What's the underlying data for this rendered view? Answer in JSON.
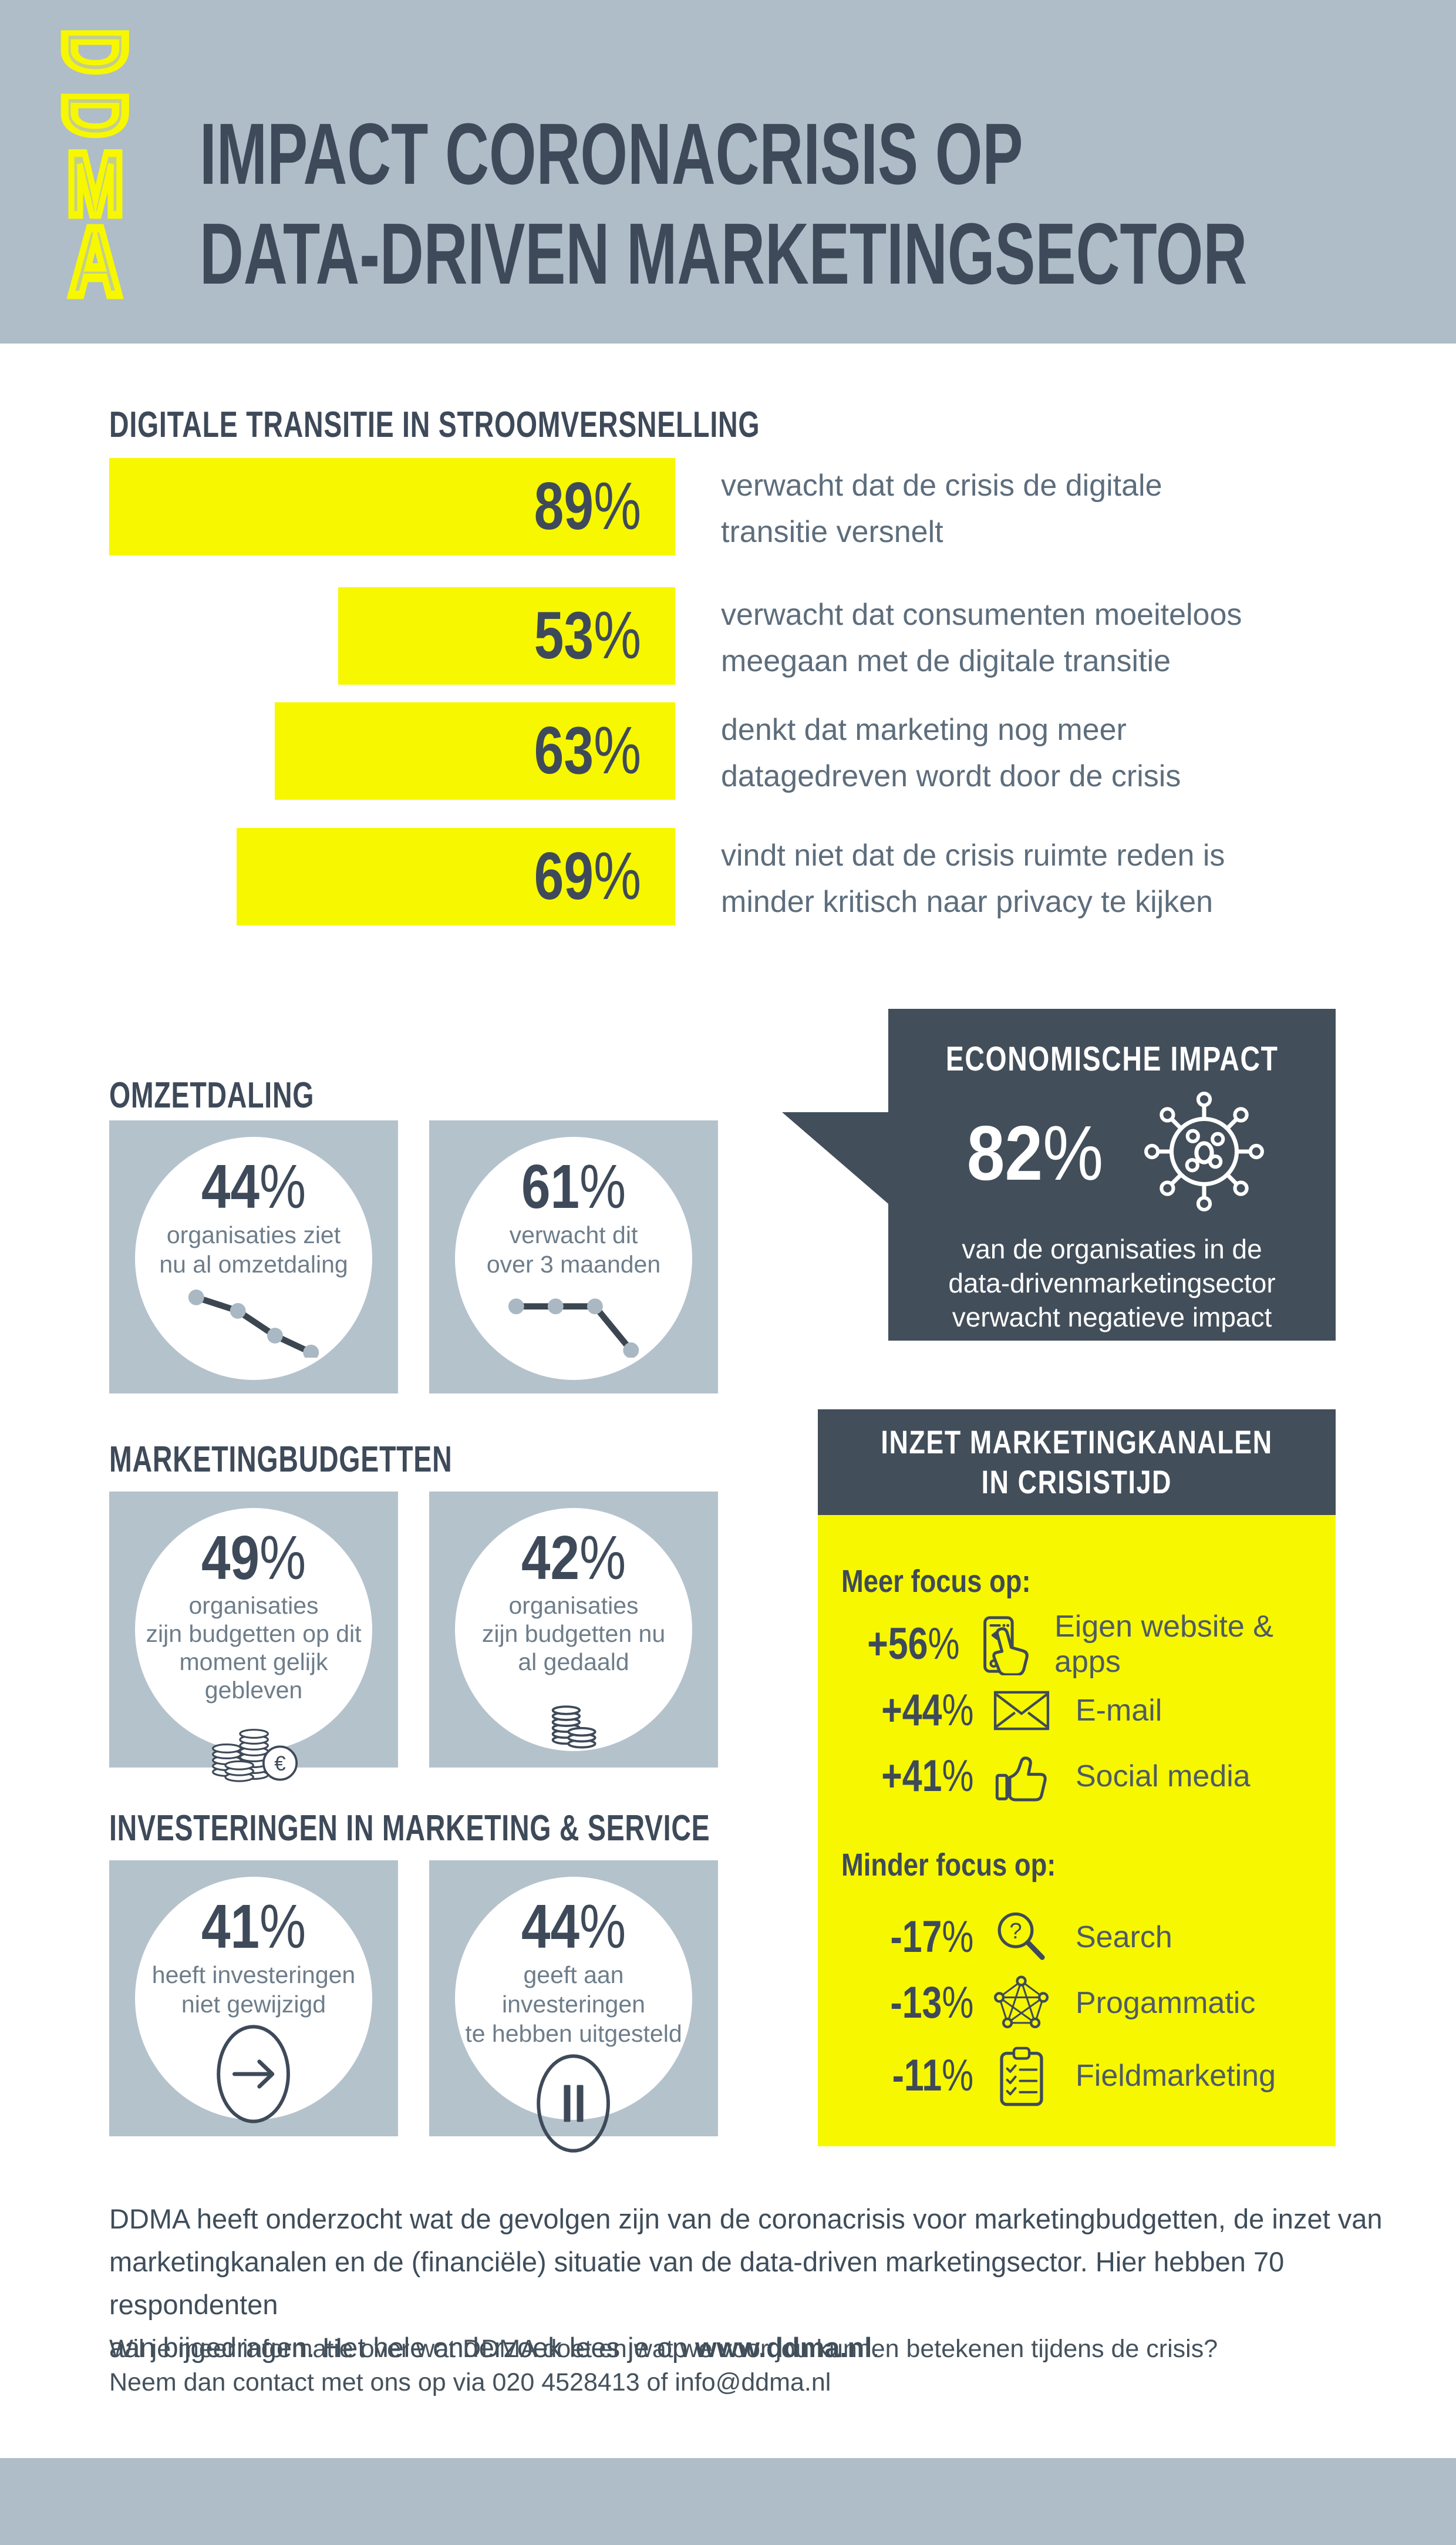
{
  "colors": {
    "accent_yellow": "#F7F700",
    "band_gray_blue": "#AEBDC8",
    "card_gray_blue": "#B4C2CC",
    "navy_text": "#3E4A59",
    "dark_panel": "#424E5A",
    "body_text": "#5D6D7C",
    "white": "#FFFFFF"
  },
  "percent_sign": "%",
  "header": {
    "logo_letters": [
      "D",
      "D",
      "M",
      "A"
    ],
    "title_lines": [
      "IMPACT CORONACRISIS OP",
      "DATA-DRIVEN MARKETINGSECTOR"
    ]
  },
  "sections": {
    "digitale": {
      "heading": "DIGITALE TRANSITIE IN STROOMVERSNELLING",
      "bars": [
        {
          "number": "89",
          "value": 89,
          "lines": [
            "verwacht dat de crisis de digitale",
            "transitie versnelt"
          ]
        },
        {
          "number": "53",
          "value": 53,
          "lines": [
            "verwacht dat consumenten moeiteloos",
            "meegaan met de digitale transitie"
          ]
        },
        {
          "number": "63",
          "value": 63,
          "lines": [
            "denkt dat marketing nog meer",
            "datagedreven wordt door de crisis"
          ]
        },
        {
          "number": "69",
          "value": 69,
          "lines": [
            "vindt niet dat de crisis ruimte reden is",
            "minder kritisch naar privacy te kijken"
          ]
        }
      ]
    },
    "omzetdaling": {
      "heading": "OMZETDALING",
      "cards": [
        {
          "number": "44",
          "caption_lines": [
            "organisaties ziet",
            "nu al omzetdaling"
          ],
          "icon": "declining-line-chart-icon"
        },
        {
          "number": "61",
          "caption_lines": [
            "verwacht dit",
            "over 3 maanden"
          ],
          "icon": "flat-then-drop-line-chart-icon"
        }
      ]
    },
    "impact": {
      "title": "ECONOMISCHE IMPACT",
      "number": "82",
      "caption_lines": [
        "van de organisaties in de",
        "data-drivenmarketingsector",
        "verwacht negatieve impact"
      ],
      "icon": "virus-icon"
    },
    "budgetten": {
      "heading": "MARKETINGBUDGETTEN",
      "cards": [
        {
          "number": "49",
          "caption_lines": [
            "organisaties",
            "zijn budgetten op dit",
            "moment gelijk gebleven"
          ],
          "icon": "coin-stacks-euro-icon"
        },
        {
          "number": "42",
          "caption_lines": [
            "organisaties",
            "zijn budgetten nu",
            "al gedaald"
          ],
          "icon": "coin-stacks-icon"
        }
      ]
    },
    "kanalen": {
      "title_lines": [
        "INZET MARKETINGKANALEN",
        "IN CRISISTIJD"
      ],
      "meer_heading": "Meer focus op:",
      "meer": [
        {
          "number": "+56",
          "label": "Eigen website & apps",
          "icon": "smartphone-swipe-icon"
        },
        {
          "number": "+44",
          "label": "E-mail",
          "icon": "envelope-icon"
        },
        {
          "number": "+41",
          "label": "Social media",
          "icon": "thumbs-up-icon"
        }
      ],
      "minder_heading": "Minder focus op:",
      "minder": [
        {
          "number": "-17",
          "label": "Search",
          "icon": "search-question-icon"
        },
        {
          "number": "-13",
          "label": "Progammatic",
          "icon": "network-nodes-icon"
        },
        {
          "number": "-11",
          "label": "Fieldmarketing",
          "icon": "clipboard-checklist-icon"
        }
      ]
    },
    "investeringen": {
      "heading": "INVESTERINGEN IN MARKETING & SERVICE",
      "cards": [
        {
          "number": "41",
          "caption_lines": [
            "heeft investeringen",
            "niet gewijzigd"
          ],
          "icon": "arrow-right-circle-icon"
        },
        {
          "number": "44",
          "caption_lines": [
            "geeft aan investeringen",
            "te hebben uitgesteld"
          ],
          "icon": "pause-circle-icon"
        }
      ]
    }
  },
  "footer": {
    "para1_lines": [
      "DDMA heeft onderzocht wat de gevolgen zijn van de coronacrisis voor marketingbudgetten, de inzet van",
      "marketingkanalen en de (financiële) situatie van de data-driven marketingsector. Hier hebben 70 respondenten"
    ],
    "para1_line3_prefix": "aan bijgedragen. Het hele onderzoek lees je op ",
    "para1_link": "www.ddma.nl",
    "para1_line3_suffix": ".",
    "para2_lines": [
      "Wil je meer informatie over wat DDMA doet en wat we voor jou kunnen betekenen tijdens de crisis?",
      "Neem dan contact met ons op via 020 4528413 of info@ddma.nl"
    ]
  },
  "chart_data": [
    {
      "type": "bar",
      "title": "DIGITALE TRANSITIE IN STROOMVERSNELLING",
      "unit": "%",
      "categories": [
        "verwacht dat de crisis de digitale transitie versnelt",
        "verwacht dat consumenten moeiteloos meegaan met de digitale transitie",
        "denkt dat marketing nog meer datagedreven wordt door de crisis",
        "vindt niet dat de crisis ruimte reden is minder kritisch naar privacy te kijken"
      ],
      "values": [
        89,
        53,
        63,
        69
      ],
      "orientation": "horizontal-right-aligned"
    },
    {
      "type": "table",
      "title": "OMZETDALING",
      "unit": "%",
      "rows": [
        [
          "organisaties ziet nu al omzetdaling",
          44
        ],
        [
          "verwacht dit over 3 maanden",
          61
        ]
      ]
    },
    {
      "type": "table",
      "title": "ECONOMISCHE IMPACT",
      "unit": "%",
      "rows": [
        [
          "van de organisaties in de data-drivenmarketingsector verwacht negatieve impact",
          82
        ]
      ]
    },
    {
      "type": "table",
      "title": "MARKETINGBUDGETTEN",
      "unit": "%",
      "rows": [
        [
          "organisaties zijn budgetten op dit moment gelijk gebleven",
          49
        ],
        [
          "organisaties zijn budgetten nu al gedaald",
          42
        ]
      ]
    },
    {
      "type": "table",
      "title": "INZET MARKETINGKANALEN IN CRISISTIJD - Meer focus op",
      "unit": "%",
      "rows": [
        [
          "Eigen website & apps",
          56
        ],
        [
          "E-mail",
          44
        ],
        [
          "Social media",
          41
        ]
      ]
    },
    {
      "type": "table",
      "title": "INZET MARKETINGKANALEN IN CRISISTIJD - Minder focus op",
      "unit": "%",
      "rows": [
        [
          "Search",
          -17
        ],
        [
          "Progammatic",
          -13
        ],
        [
          "Fieldmarketing",
          -11
        ]
      ]
    },
    {
      "type": "table",
      "title": "INVESTERINGEN IN MARKETING & SERVICE",
      "unit": "%",
      "rows": [
        [
          "heeft investeringen niet gewijzigd",
          41
        ],
        [
          "geeft aan investeringen te hebben uitgesteld",
          44
        ]
      ]
    }
  ]
}
